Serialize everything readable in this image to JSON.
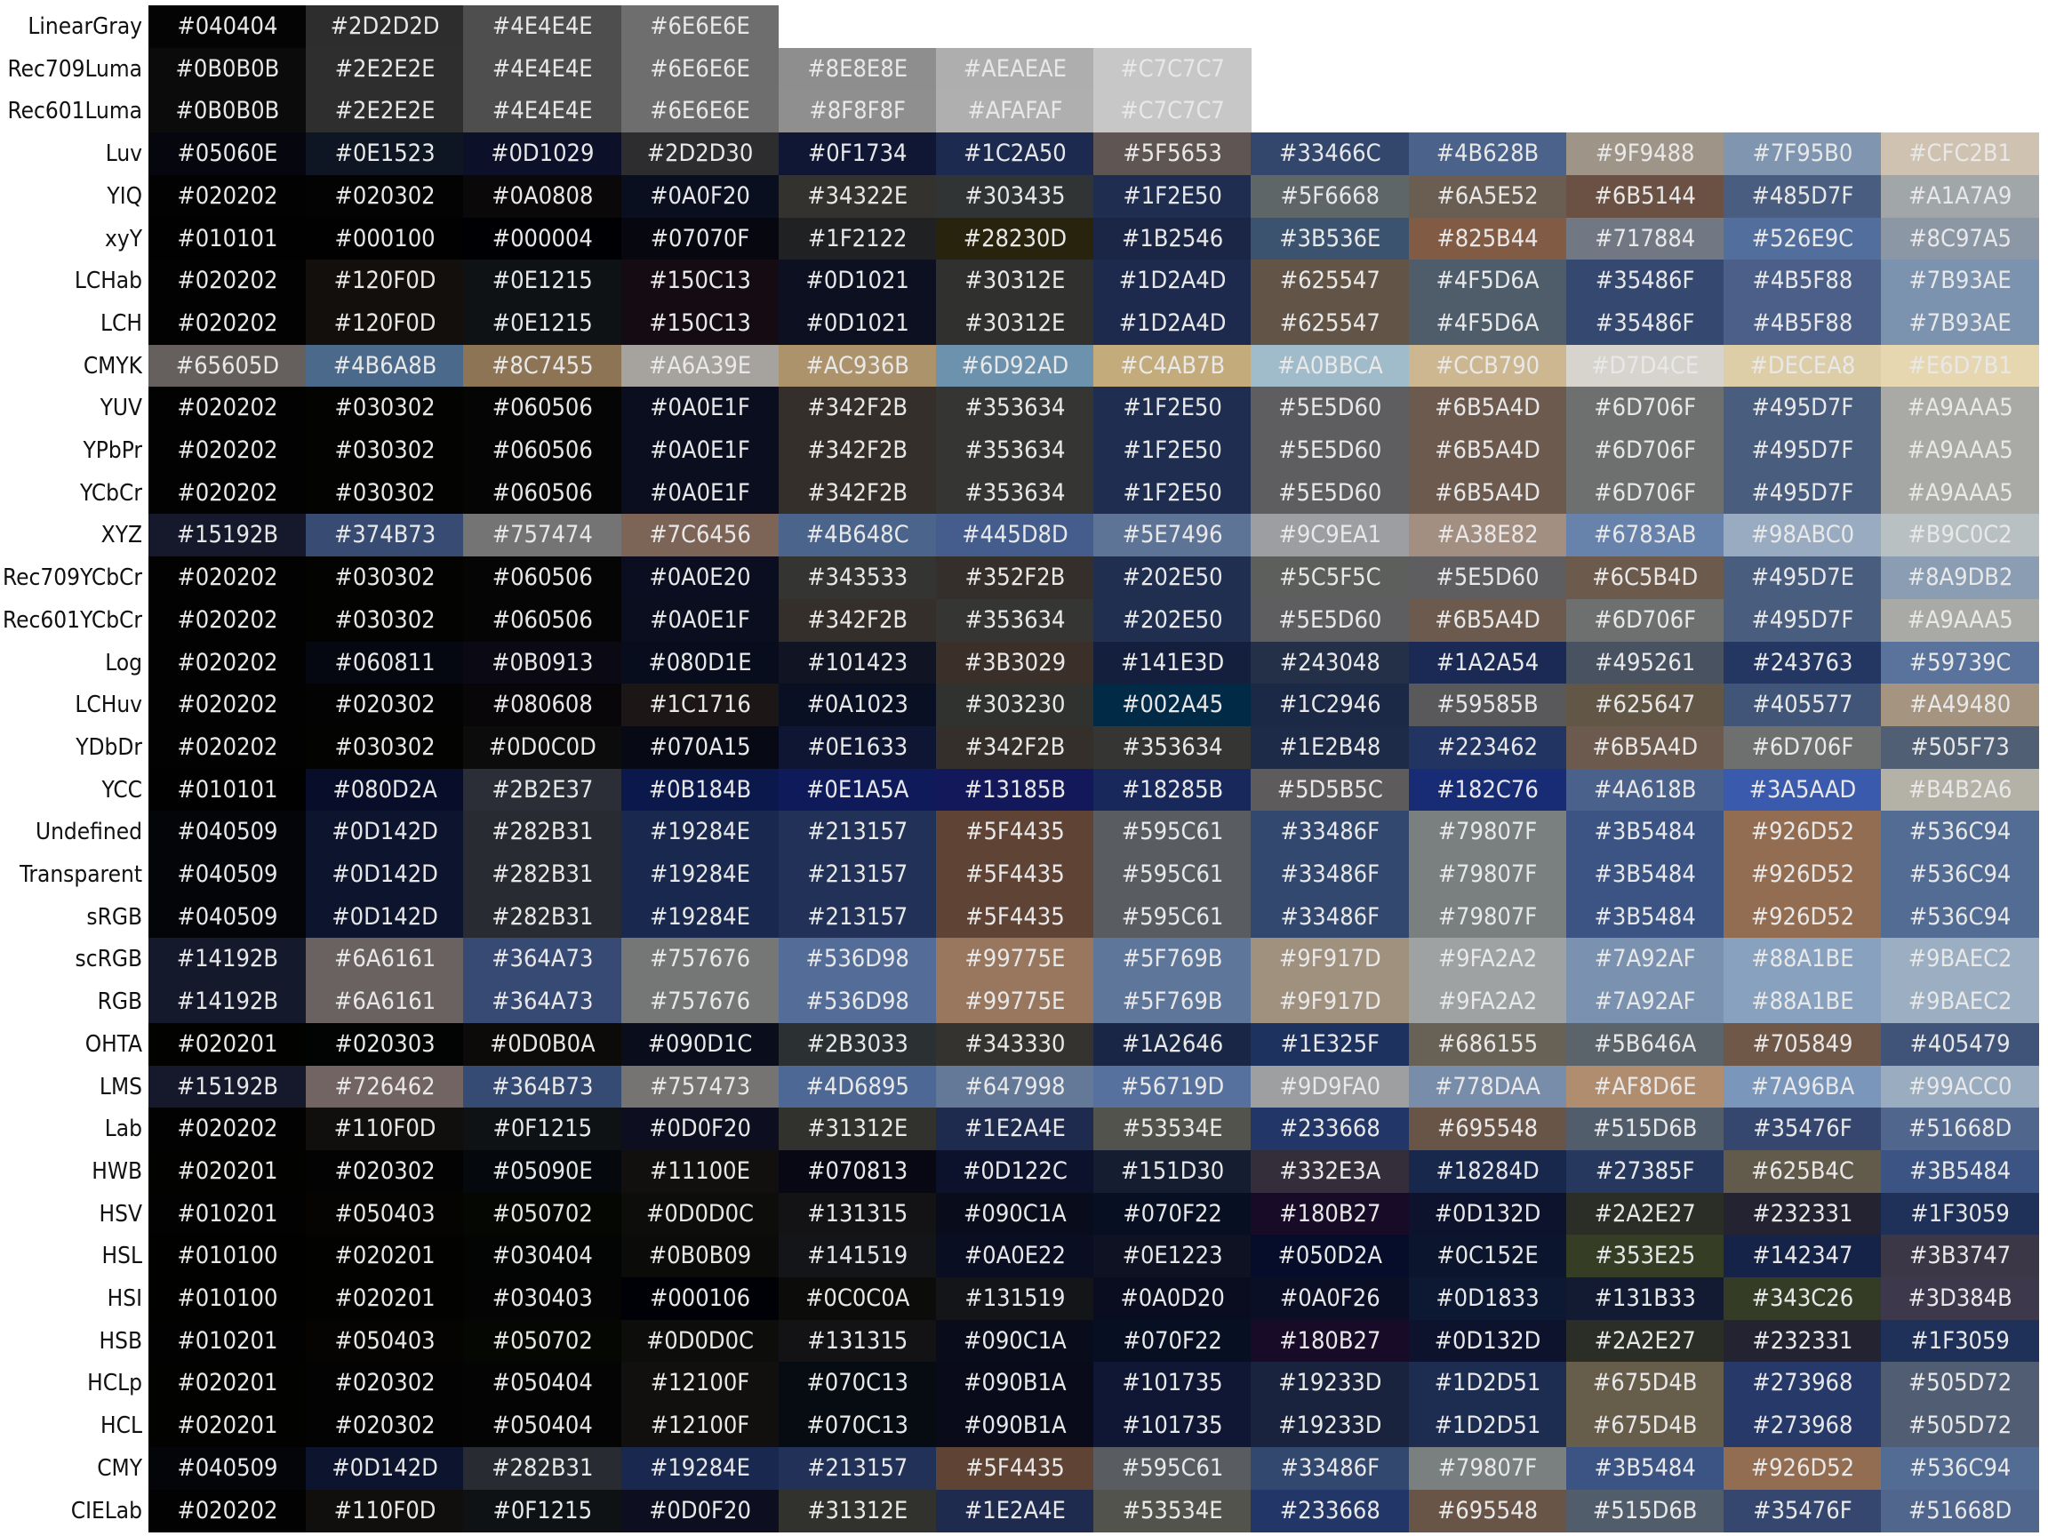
{
  "palette": {
    "rows": [
      {
        "label": "LinearGray",
        "colors": [
          "#040404",
          "#2D2D2D",
          "#4E4E4E",
          "#6E6E6E"
        ]
      },
      {
        "label": "Rec709Luma",
        "colors": [
          "#0B0B0B",
          "#2E2E2E",
          "#4E4E4E",
          "#6E6E6E",
          "#8E8E8E",
          "#AEAEAE",
          "#C7C7C7"
        ]
      },
      {
        "label": "Rec601Luma",
        "colors": [
          "#0B0B0B",
          "#2E2E2E",
          "#4E4E4E",
          "#6E6E6E",
          "#8F8F8F",
          "#AFAFAF",
          "#C7C7C7"
        ]
      },
      {
        "label": "Luv",
        "colors": [
          "#05060E",
          "#0E1523",
          "#0D1029",
          "#2D2D30",
          "#0F1734",
          "#1C2A50",
          "#5F5653",
          "#33466C",
          "#4B628B",
          "#9F9488",
          "#7F95B0",
          "#CFC2B1"
        ]
      },
      {
        "label": "YIQ",
        "colors": [
          "#020202",
          "#020302",
          "#0A0808",
          "#0A0F20",
          "#34322E",
          "#303435",
          "#1F2E50",
          "#5F6668",
          "#6A5E52",
          "#6B5144",
          "#485D7F",
          "#A1A7A9"
        ]
      },
      {
        "label": "xyY",
        "colors": [
          "#010101",
          "#000100",
          "#000004",
          "#07070F",
          "#1F2122",
          "#28230D",
          "#1B2546",
          "#3B536E",
          "#825B44",
          "#717884",
          "#526E9C",
          "#8C97A5"
        ]
      },
      {
        "label": "LCHab",
        "colors": [
          "#020202",
          "#120F0D",
          "#0E1215",
          "#150C13",
          "#0D1021",
          "#30312E",
          "#1D2A4D",
          "#625547",
          "#4F5D6A",
          "#35486F",
          "#4B5F88",
          "#7B93AE"
        ]
      },
      {
        "label": "LCH",
        "colors": [
          "#020202",
          "#120F0D",
          "#0E1215",
          "#150C13",
          "#0D1021",
          "#30312E",
          "#1D2A4D",
          "#625547",
          "#4F5D6A",
          "#35486F",
          "#4B5F88",
          "#7B93AE"
        ]
      },
      {
        "label": "CMYK",
        "colors": [
          "#65605D",
          "#4B6A8B",
          "#8C7455",
          "#A6A39E",
          "#AC936B",
          "#6D92AD",
          "#C4AB7B",
          "#A0BBCA",
          "#CCB790",
          "#D7D4CE",
          "#DECEA8",
          "#E6D7B1"
        ]
      },
      {
        "label": "YUV",
        "colors": [
          "#020202",
          "#030302",
          "#060506",
          "#0A0E1F",
          "#342F2B",
          "#353634",
          "#1F2E50",
          "#5E5D60",
          "#6B5A4D",
          "#6D706F",
          "#495D7F",
          "#A9AAA5"
        ]
      },
      {
        "label": "YPbPr",
        "colors": [
          "#020202",
          "#030302",
          "#060506",
          "#0A0E1F",
          "#342F2B",
          "#353634",
          "#1F2E50",
          "#5E5D60",
          "#6B5A4D",
          "#6D706F",
          "#495D7F",
          "#A9AAA5"
        ]
      },
      {
        "label": "YCbCr",
        "colors": [
          "#020202",
          "#030302",
          "#060506",
          "#0A0E1F",
          "#342F2B",
          "#353634",
          "#1F2E50",
          "#5E5D60",
          "#6B5A4D",
          "#6D706F",
          "#495D7F",
          "#A9AAA5"
        ]
      },
      {
        "label": "XYZ",
        "colors": [
          "#15192B",
          "#374B73",
          "#757474",
          "#7C6456",
          "#4B648C",
          "#445D8D",
          "#5E7496",
          "#9C9EA1",
          "#A38E82",
          "#6783AB",
          "#98ABC0",
          "#B9C0C2"
        ]
      },
      {
        "label": "Rec709YCbCr",
        "colors": [
          "#020202",
          "#030302",
          "#060506",
          "#0A0E20",
          "#343533",
          "#352F2B",
          "#202E50",
          "#5C5F5C",
          "#5E5D60",
          "#6C5B4D",
          "#495D7E",
          "#8A9DB2"
        ]
      },
      {
        "label": "Rec601YCbCr",
        "colors": [
          "#020202",
          "#030302",
          "#060506",
          "#0A0E1F",
          "#342F2B",
          "#353634",
          "#202E50",
          "#5E5D60",
          "#6B5A4D",
          "#6D706F",
          "#495D7F",
          "#A9AAA5"
        ]
      },
      {
        "label": "Log",
        "colors": [
          "#020202",
          "#060811",
          "#0B0913",
          "#080D1E",
          "#101423",
          "#3B3029",
          "#141E3D",
          "#243048",
          "#1A2A54",
          "#495261",
          "#243763",
          "#59739C"
        ]
      },
      {
        "label": "LCHuv",
        "colors": [
          "#020202",
          "#020302",
          "#080608",
          "#1C1716",
          "#0A1023",
          "#303230",
          "#002A45",
          "#1C2946",
          "#59585B",
          "#625647",
          "#405577",
          "#A49480"
        ]
      },
      {
        "label": "YDbDr",
        "colors": [
          "#020202",
          "#030302",
          "#0D0C0D",
          "#070A15",
          "#0E1633",
          "#342F2B",
          "#353634",
          "#1E2B48",
          "#223462",
          "#6B5A4D",
          "#6D706F",
          "#505F73"
        ]
      },
      {
        "label": "YCC",
        "colors": [
          "#010101",
          "#080D2A",
          "#2B2E37",
          "#0B184B",
          "#0E1A5A",
          "#13185B",
          "#18285B",
          "#5D5B5C",
          "#182C76",
          "#4A618B",
          "#3A5AAD",
          "#B4B2A6"
        ]
      },
      {
        "label": "Undefined",
        "colors": [
          "#040509",
          "#0D142D",
          "#282B31",
          "#19284E",
          "#213157",
          "#5F4435",
          "#595C61",
          "#33486F",
          "#79807F",
          "#3B5484",
          "#926D52",
          "#536C94"
        ]
      },
      {
        "label": "Transparent",
        "colors": [
          "#040509",
          "#0D142D",
          "#282B31",
          "#19284E",
          "#213157",
          "#5F4435",
          "#595C61",
          "#33486F",
          "#79807F",
          "#3B5484",
          "#926D52",
          "#536C94"
        ]
      },
      {
        "label": "sRGB",
        "colors": [
          "#040509",
          "#0D142D",
          "#282B31",
          "#19284E",
          "#213157",
          "#5F4435",
          "#595C61",
          "#33486F",
          "#79807F",
          "#3B5484",
          "#926D52",
          "#536C94"
        ]
      },
      {
        "label": "scRGB",
        "colors": [
          "#14192B",
          "#6A6161",
          "#364A73",
          "#757676",
          "#536D98",
          "#99775E",
          "#5F769B",
          "#9F917D",
          "#9FA2A2",
          "#7A92AF",
          "#88A1BE",
          "#9BAEC2"
        ]
      },
      {
        "label": "RGB",
        "colors": [
          "#14192B",
          "#6A6161",
          "#364A73",
          "#757676",
          "#536D98",
          "#99775E",
          "#5F769B",
          "#9F917D",
          "#9FA2A2",
          "#7A92AF",
          "#88A1BE",
          "#9BAEC2"
        ]
      },
      {
        "label": "OHTA",
        "colors": [
          "#020201",
          "#020303",
          "#0D0B0A",
          "#090D1C",
          "#2B3033",
          "#343330",
          "#1A2646",
          "#1E325F",
          "#686155",
          "#5B646A",
          "#705849",
          "#405479"
        ]
      },
      {
        "label": "LMS",
        "colors": [
          "#15192B",
          "#726462",
          "#364B73",
          "#757473",
          "#4D6895",
          "#647998",
          "#56719D",
          "#9D9FA0",
          "#778DAA",
          "#AF8D6E",
          "#7A96BA",
          "#99ACC0"
        ]
      },
      {
        "label": "Lab",
        "colors": [
          "#020202",
          "#110F0D",
          "#0F1215",
          "#0D0F20",
          "#31312E",
          "#1E2A4E",
          "#53534E",
          "#233668",
          "#695548",
          "#515D6B",
          "#35476F",
          "#51668D"
        ]
      },
      {
        "label": "HWB",
        "colors": [
          "#020201",
          "#020302",
          "#05090E",
          "#11100E",
          "#070813",
          "#0D122C",
          "#151D30",
          "#332E3A",
          "#18284D",
          "#27385F",
          "#625B4C",
          "#3B5484"
        ]
      },
      {
        "label": "HSV",
        "colors": [
          "#010201",
          "#050403",
          "#050702",
          "#0D0D0C",
          "#131315",
          "#090C1A",
          "#070F22",
          "#180B27",
          "#0D132D",
          "#2A2E27",
          "#232331",
          "#1F3059"
        ]
      },
      {
        "label": "HSL",
        "colors": [
          "#010100",
          "#020201",
          "#030404",
          "#0B0B09",
          "#141519",
          "#0A0E22",
          "#0E1223",
          "#050D2A",
          "#0C152E",
          "#353E25",
          "#142347",
          "#3B3747"
        ]
      },
      {
        "label": "HSI",
        "colors": [
          "#010100",
          "#020201",
          "#030403",
          "#000106",
          "#0C0C0A",
          "#131519",
          "#0A0D20",
          "#0A0F26",
          "#0D1833",
          "#131B33",
          "#343C26",
          "#3D384B"
        ]
      },
      {
        "label": "HSB",
        "colors": [
          "#010201",
          "#050403",
          "#050702",
          "#0D0D0C",
          "#131315",
          "#090C1A",
          "#070F22",
          "#180B27",
          "#0D132D",
          "#2A2E27",
          "#232331",
          "#1F3059"
        ]
      },
      {
        "label": "HCLp",
        "colors": [
          "#020201",
          "#020302",
          "#050404",
          "#12100F",
          "#070C13",
          "#090B1A",
          "#101735",
          "#19233D",
          "#1D2D51",
          "#675D4B",
          "#273968",
          "#505D72"
        ]
      },
      {
        "label": "HCL",
        "colors": [
          "#020201",
          "#020302",
          "#050404",
          "#12100F",
          "#070C13",
          "#090B1A",
          "#101735",
          "#19233D",
          "#1D2D51",
          "#675D4B",
          "#273968",
          "#505D72"
        ]
      },
      {
        "label": "CMY",
        "colors": [
          "#040509",
          "#0D142D",
          "#282B31",
          "#19284E",
          "#213157",
          "#5F4435",
          "#595C61",
          "#33486F",
          "#79807F",
          "#3B5484",
          "#926D52",
          "#536C94"
        ]
      },
      {
        "label": "CIELab",
        "colors": [
          "#020202",
          "#110F0D",
          "#0F1215",
          "#0D0F20",
          "#31312E",
          "#1E2A4E",
          "#53534E",
          "#233668",
          "#695548",
          "#515D6B",
          "#35476F",
          "#51668D"
        ]
      }
    ]
  }
}
